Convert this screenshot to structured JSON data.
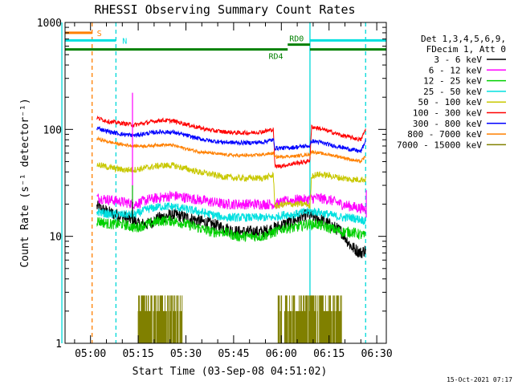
{
  "chart_data": {
    "type": "line",
    "title": "RHESSI Observing Summary Count Rates",
    "xlabel": "Start Time (03-Sep-08 04:51:02)",
    "ylabel": "Count Rate (s⁻¹ detector⁻¹)",
    "yscale": "log",
    "ylim": [
      1,
      1000
    ],
    "xlim_minutes": [
      -8,
      93
    ],
    "y_ticks": [
      {
        "value": 1,
        "label": "1"
      },
      {
        "value": 10,
        "label": "10"
      },
      {
        "value": 100,
        "label": "100"
      },
      {
        "value": 1000,
        "label": "1000"
      }
    ],
    "x_ticks": [
      {
        "t": 0,
        "label": "05:00"
      },
      {
        "t": 15,
        "label": "05:15"
      },
      {
        "t": 30,
        "label": "05:30"
      },
      {
        "t": 45,
        "label": "05:45"
      },
      {
        "t": 60,
        "label": "06:00"
      },
      {
        "t": 75,
        "label": "06:15"
      },
      {
        "t": 90,
        "label": "06:30"
      }
    ],
    "x_minor_step": 5,
    "footer_timestamp": "15-Oct-2021 07:17",
    "legend_header": [
      "Det 1,3,4,5,6,9,",
      "FDecim 1, Att 0"
    ],
    "vlines": [
      {
        "t": -9,
        "color": "#00d8d8",
        "style": "solid"
      },
      {
        "t": 0.5,
        "color": "#ff8000",
        "style": "dashed"
      },
      {
        "t": 8,
        "color": "#00d8d8",
        "style": "dashed"
      },
      {
        "t": 69,
        "color": "#00d8d8",
        "style": "solid"
      },
      {
        "t": 86.5,
        "color": "#00d8d8",
        "style": "dashed"
      }
    ],
    "flags": [
      {
        "label": "S",
        "color": "#ff8000",
        "t0": -8,
        "t1": 0.5,
        "level": 800,
        "label_t": 2,
        "label_side": "right"
      },
      {
        "label": "N",
        "color": "#00e0e0",
        "t0": -8,
        "t1": 8,
        "level": 680,
        "label_t": 10,
        "label_side": "right"
      },
      {
        "label": "N",
        "color": "#00e0e0",
        "t0": 69,
        "t1": 93,
        "level": 680,
        "label_t": null,
        "label_side": "none"
      },
      {
        "label": "RD0",
        "color": "#008000",
        "t0": 62,
        "t1": 69,
        "level": 620,
        "label_t": 62.5,
        "label_side": "above"
      },
      {
        "label": "RD4",
        "color": "#008000",
        "t0": -8,
        "t1": 62,
        "level": 560,
        "label_t": 56,
        "label_side": "below"
      },
      {
        "label": "RD4",
        "color": "#008000",
        "t0": 69,
        "t1": 93,
        "level": 560,
        "label_t": null,
        "label_side": "none"
      }
    ],
    "series": [
      {
        "name": "3 - 6 keV",
        "color": "#000000",
        "noise": 0.06,
        "points": [
          [
            2,
            19
          ],
          [
            5,
            17
          ],
          [
            8,
            16
          ],
          [
            11,
            15
          ],
          [
            14,
            14
          ],
          [
            15,
            13
          ],
          [
            18,
            13
          ],
          [
            22,
            15
          ],
          [
            26,
            16
          ],
          [
            30,
            15
          ],
          [
            34,
            14
          ],
          [
            38,
            13
          ],
          [
            42,
            12
          ],
          [
            46,
            11
          ],
          [
            50,
            11
          ],
          [
            54,
            11
          ],
          [
            58,
            12
          ],
          [
            61,
            13
          ],
          [
            64,
            14
          ],
          [
            68,
            16
          ],
          [
            71,
            15
          ],
          [
            75,
            13
          ],
          [
            79,
            11
          ],
          [
            82,
            8
          ],
          [
            85,
            7
          ],
          [
            86.5,
            7.5
          ]
        ]
      },
      {
        "name": "6 - 12 keV",
        "color": "#ff00ff",
        "noise": 0.05,
        "points": [
          [
            2,
            23
          ],
          [
            6,
            22
          ],
          [
            10,
            21
          ],
          [
            14,
            20
          ],
          [
            18,
            22
          ],
          [
            22,
            23
          ],
          [
            26,
            24
          ],
          [
            30,
            23
          ],
          [
            34,
            22
          ],
          [
            38,
            21
          ],
          [
            42,
            20
          ],
          [
            46,
            20
          ],
          [
            50,
            20
          ],
          [
            54,
            20
          ],
          [
            58,
            20
          ],
          [
            61,
            21
          ],
          [
            64,
            22
          ],
          [
            68,
            22
          ],
          [
            71,
            23
          ],
          [
            75,
            22
          ],
          [
            79,
            20
          ],
          [
            82,
            19
          ],
          [
            86.5,
            18
          ]
        ]
      },
      {
        "name": "12 - 25 keV",
        "color": "#00d000",
        "noise": 0.05,
        "points": [
          [
            2,
            14
          ],
          [
            6,
            13
          ],
          [
            10,
            13
          ],
          [
            14,
            12
          ],
          [
            18,
            13
          ],
          [
            22,
            14
          ],
          [
            26,
            14
          ],
          [
            30,
            13
          ],
          [
            34,
            12
          ],
          [
            38,
            11
          ],
          [
            42,
            11
          ],
          [
            46,
            10
          ],
          [
            50,
            10
          ],
          [
            54,
            10
          ],
          [
            58,
            11
          ],
          [
            61,
            12
          ],
          [
            64,
            12
          ],
          [
            68,
            13
          ],
          [
            71,
            13
          ],
          [
            75,
            12
          ],
          [
            79,
            11
          ],
          [
            82,
            11
          ],
          [
            86.5,
            10
          ]
        ]
      },
      {
        "name": "25 - 50 keV",
        "color": "#00e0e0",
        "noise": 0.04,
        "points": [
          [
            2,
            17
          ],
          [
            6,
            16
          ],
          [
            10,
            16
          ],
          [
            14,
            16
          ],
          [
            18,
            18
          ],
          [
            22,
            19
          ],
          [
            26,
            19
          ],
          [
            30,
            18
          ],
          [
            34,
            17
          ],
          [
            38,
            16
          ],
          [
            42,
            15
          ],
          [
            46,
            15
          ],
          [
            50,
            15
          ],
          [
            54,
            15
          ],
          [
            58,
            15
          ],
          [
            61,
            16
          ],
          [
            64,
            16
          ],
          [
            68,
            17
          ],
          [
            71,
            17
          ],
          [
            75,
            16
          ],
          [
            79,
            15
          ],
          [
            82,
            15
          ],
          [
            86.5,
            14
          ]
        ]
      },
      {
        "name": "50 - 100 keV",
        "color": "#c8c800",
        "noise": 0.03,
        "points": [
          [
            2,
            47
          ],
          [
            6,
            44
          ],
          [
            10,
            42
          ],
          [
            14,
            42
          ],
          [
            18,
            44
          ],
          [
            22,
            46
          ],
          [
            26,
            46
          ],
          [
            30,
            43
          ],
          [
            34,
            40
          ],
          [
            38,
            38
          ],
          [
            42,
            36
          ],
          [
            46,
            35
          ],
          [
            50,
            35
          ],
          [
            54,
            35
          ],
          [
            57.5,
            37
          ],
          [
            58,
            19
          ],
          [
            61,
            20
          ],
          [
            64,
            20
          ],
          [
            68,
            20
          ],
          [
            69,
            19
          ],
          [
            69.5,
            37
          ],
          [
            72,
            38
          ],
          [
            75,
            37
          ],
          [
            79,
            35
          ],
          [
            82,
            34
          ],
          [
            86.5,
            34
          ]
        ]
      },
      {
        "name": "100 - 300 keV",
        "color": "#ff0000",
        "noise": 0.02,
        "points": [
          [
            2,
            128
          ],
          [
            6,
            118
          ],
          [
            10,
            114
          ],
          [
            14,
            110
          ],
          [
            18,
            116
          ],
          [
            22,
            122
          ],
          [
            26,
            120
          ],
          [
            30,
            112
          ],
          [
            34,
            104
          ],
          [
            38,
            98
          ],
          [
            42,
            95
          ],
          [
            46,
            93
          ],
          [
            50,
            93
          ],
          [
            54,
            95
          ],
          [
            57.5,
            100
          ],
          [
            58,
            45
          ],
          [
            61,
            46
          ],
          [
            64,
            48
          ],
          [
            68,
            50
          ],
          [
            69,
            52
          ],
          [
            69.5,
            106
          ],
          [
            72,
            102
          ],
          [
            75,
            96
          ],
          [
            79,
            88
          ],
          [
            82,
            84
          ],
          [
            85,
            80
          ],
          [
            86.5,
            100
          ]
        ]
      },
      {
        "name": "300 - 800 keV",
        "color": "#0000ff",
        "noise": 0.02,
        "points": [
          [
            2,
            103
          ],
          [
            6,
            95
          ],
          [
            10,
            90
          ],
          [
            14,
            88
          ],
          [
            18,
            92
          ],
          [
            22,
            95
          ],
          [
            26,
            94
          ],
          [
            30,
            88
          ],
          [
            34,
            82
          ],
          [
            38,
            78
          ],
          [
            42,
            76
          ],
          [
            46,
            75
          ],
          [
            50,
            75
          ],
          [
            54,
            76
          ],
          [
            57.5,
            80
          ],
          [
            58,
            67
          ],
          [
            61,
            67
          ],
          [
            64,
            68
          ],
          [
            68,
            70
          ],
          [
            69,
            70
          ],
          [
            69.5,
            78
          ],
          [
            72,
            76
          ],
          [
            75,
            72
          ],
          [
            79,
            68
          ],
          [
            82,
            65
          ],
          [
            85,
            62
          ],
          [
            86.5,
            78
          ]
        ]
      },
      {
        "name": "800 - 7000 keV",
        "color": "#ff8000",
        "noise": 0.015,
        "points": [
          [
            2,
            82
          ],
          [
            6,
            76
          ],
          [
            10,
            72
          ],
          [
            14,
            70
          ],
          [
            18,
            70
          ],
          [
            22,
            72
          ],
          [
            26,
            71
          ],
          [
            30,
            66
          ],
          [
            34,
            62
          ],
          [
            38,
            60
          ],
          [
            42,
            58
          ],
          [
            46,
            57
          ],
          [
            50,
            57
          ],
          [
            54,
            58
          ],
          [
            57.5,
            60
          ],
          [
            58,
            55
          ],
          [
            61,
            56
          ],
          [
            64,
            56
          ],
          [
            68,
            58
          ],
          [
            69,
            58
          ],
          [
            69.5,
            62
          ],
          [
            72,
            60
          ],
          [
            75,
            58
          ],
          [
            79,
            55
          ],
          [
            82,
            52
          ],
          [
            85,
            50
          ],
          [
            86.5,
            56
          ]
        ]
      },
      {
        "name": "7000 - 15000 keV",
        "color": "#808000",
        "noise": 0,
        "points": []
      }
    ],
    "bursts": [
      {
        "series": "7000 - 15000 keV",
        "t0": 15,
        "t1": 29,
        "levels": [
          1,
          2,
          2.8
        ]
      },
      {
        "series": "7000 - 15000 keV",
        "t0": 59,
        "t1": 79,
        "levels": [
          1,
          2,
          2.8
        ]
      }
    ],
    "spikes": [
      {
        "t": 13.2,
        "color": "#ff00ff",
        "low": 20,
        "high": 220
      },
      {
        "t": 13.2,
        "color": "#00d000",
        "low": 12,
        "high": 30
      },
      {
        "t": 13.2,
        "color": "#000000",
        "low": 13,
        "high": 21
      },
      {
        "t": 86.7,
        "color": "#ff00ff",
        "low": 15,
        "high": 27
      }
    ]
  }
}
